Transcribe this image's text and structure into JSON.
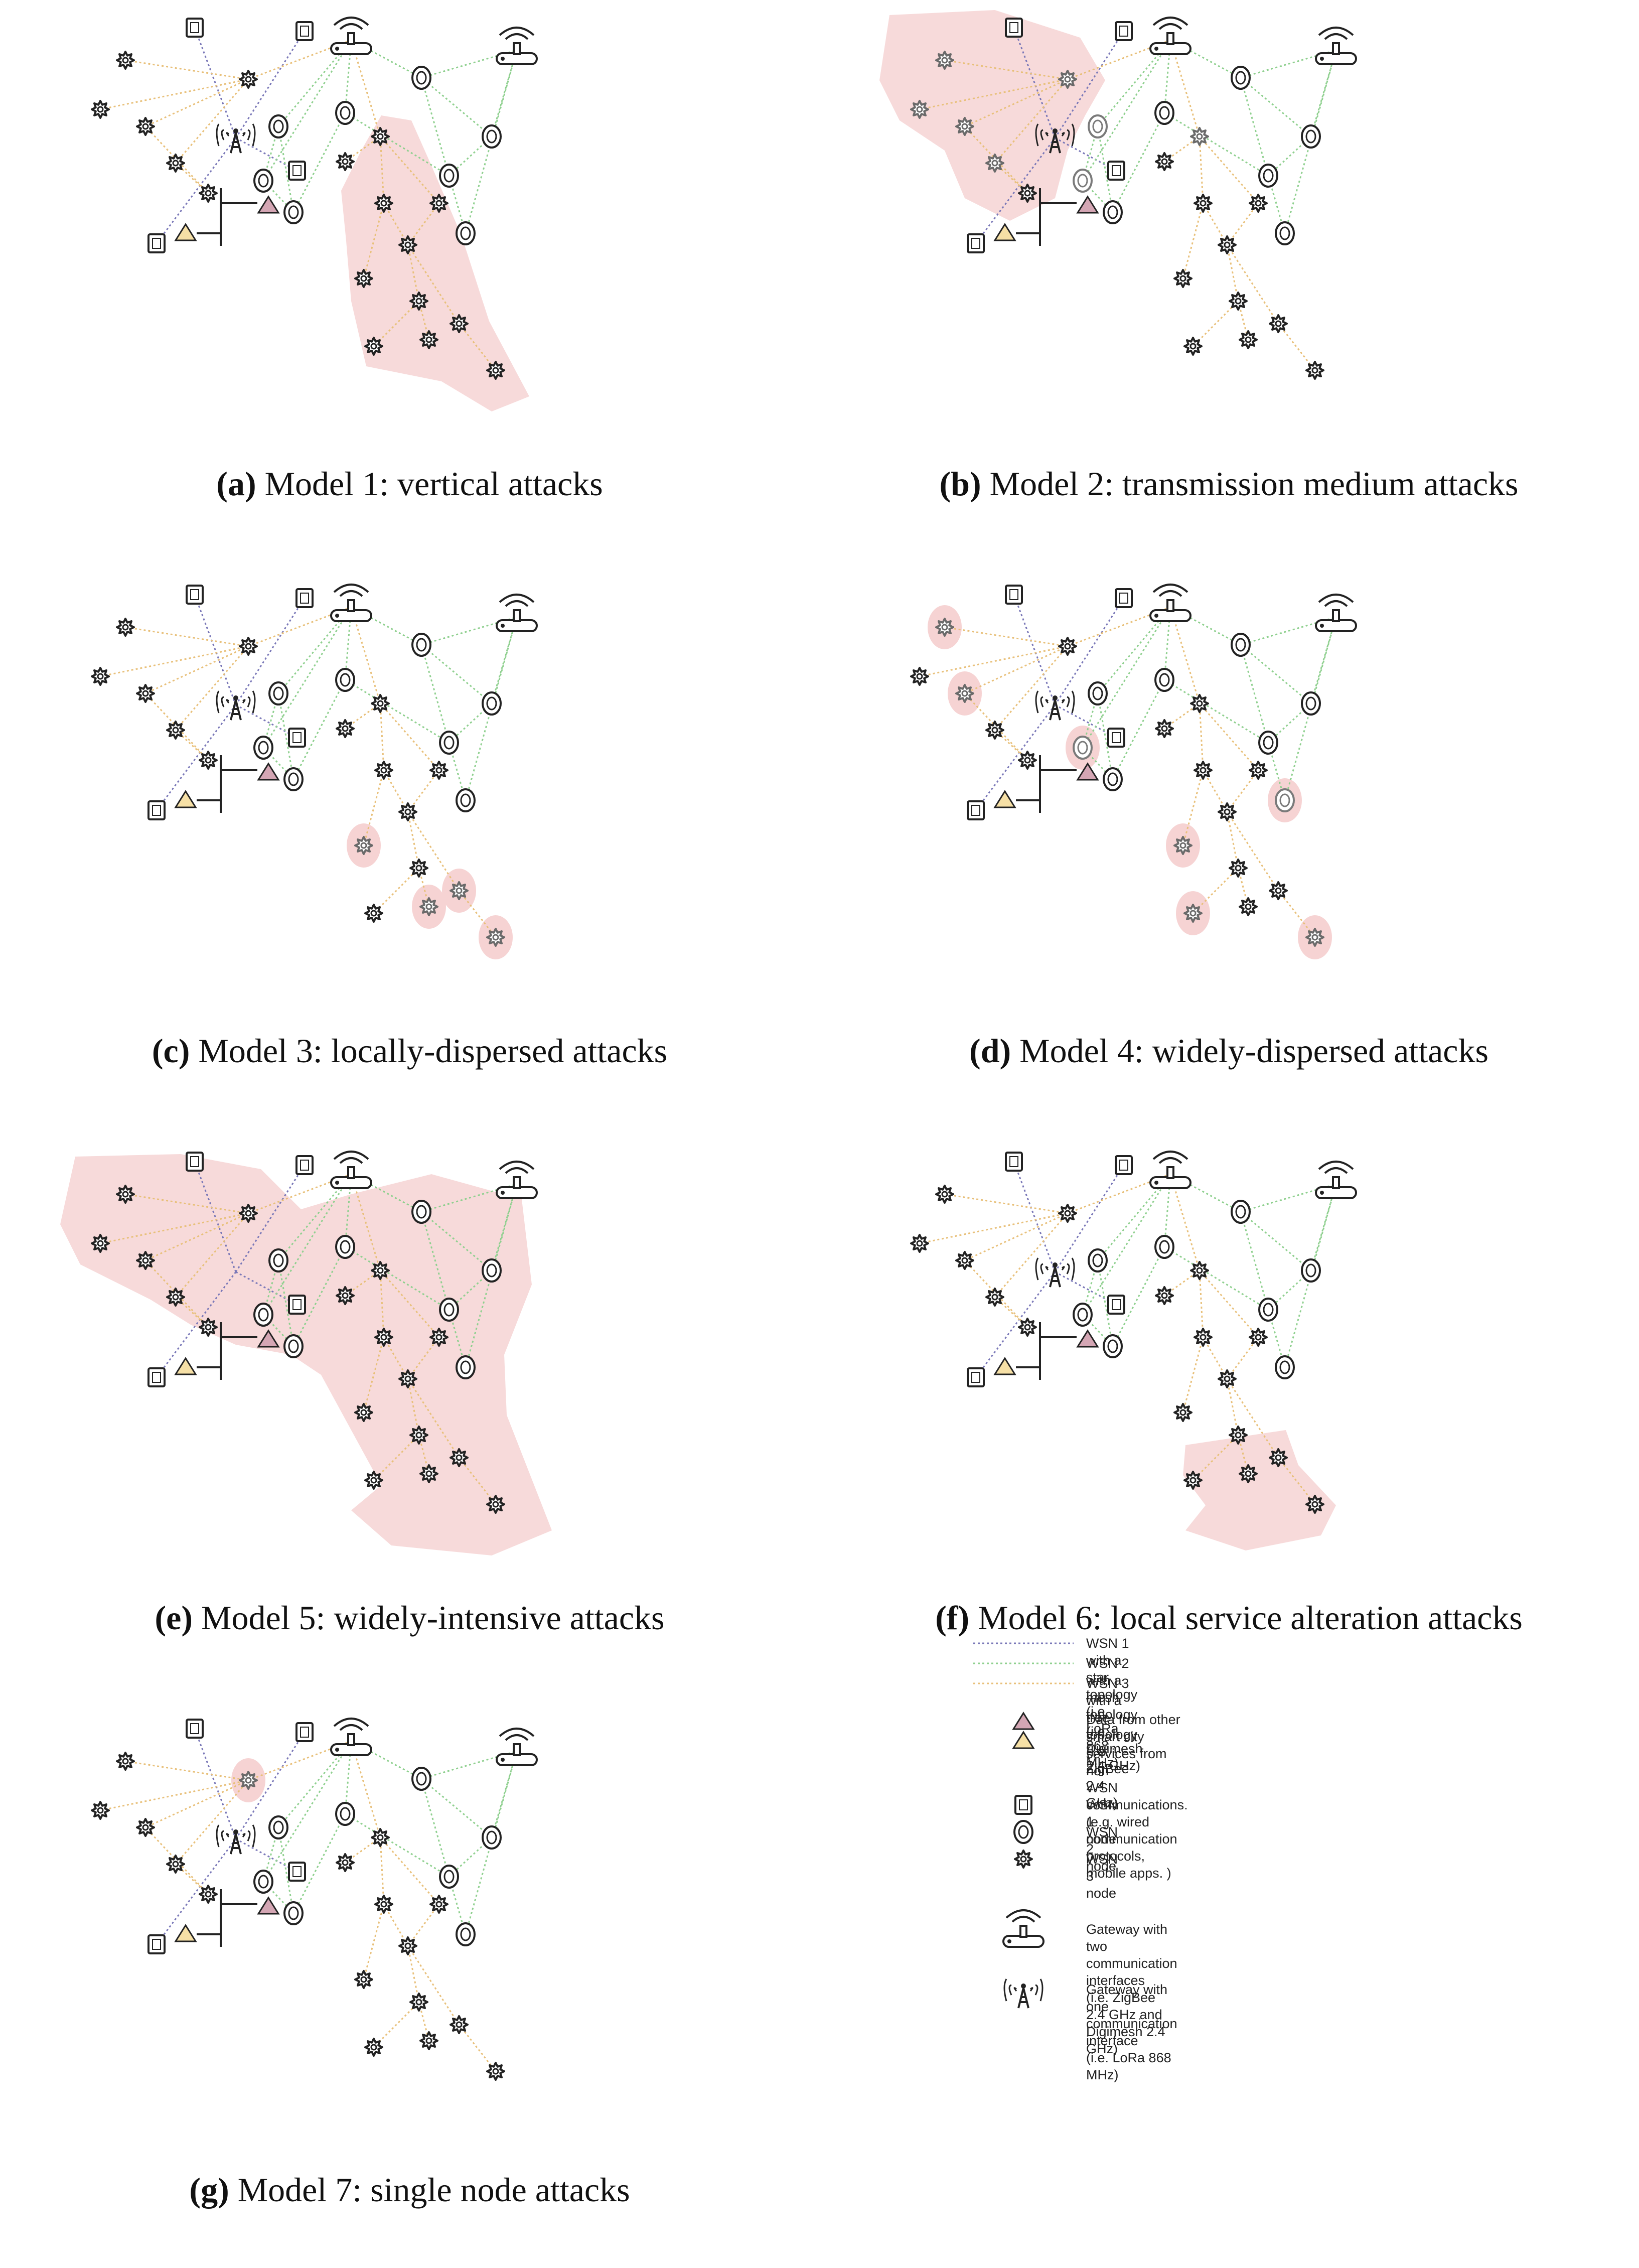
{
  "figure": {
    "panels": [
      {
        "id": "a",
        "label": "(a)",
        "caption": "Model 1: vertical attacks",
        "attack": "vertical"
      },
      {
        "id": "b",
        "label": "(b)",
        "caption": "Model 2: transmission medium attacks",
        "attack": "transmission"
      },
      {
        "id": "c",
        "label": "(c)",
        "caption": "Model 3: locally-dispersed attacks",
        "attack": "local-dispersed"
      },
      {
        "id": "d",
        "label": "(d)",
        "caption": "Model 4: widely-dispersed attacks",
        "attack": "wide-dispersed"
      },
      {
        "id": "e",
        "label": "(e)",
        "caption": "Model 5: widely-intensive attacks",
        "attack": "wide-intensive"
      },
      {
        "id": "f",
        "label": "(f)",
        "caption": "Model 6: local service alteration attacks",
        "attack": "local-service"
      },
      {
        "id": "g",
        "label": "(g)",
        "caption": "Model 7: single node attacks",
        "attack": "single-node"
      }
    ],
    "legend": {
      "wsn1_link": "WSN 1 with a star topology (i.e. LoRa 868 MHz)",
      "wsn2_link": "WSN 2 with a mesh topology (i.e. Digimesh 2.4 GHz)",
      "wsn3_link": "WSN 3 with a tree topology (i.e. ZigBee 2.4 GHz)",
      "other_data": "Data from other smart city services from non\nWSN communications. (e.g. wired\ncommunication protocols, mobile apps. )",
      "wsn1_node": "WSN 1 node",
      "wsn2_node": "WSN 2 node",
      "wsn3_node": "WSN 3 node",
      "gateway_two": "Gateway with two communication interfaces\n(i.e. ZigBee 2.4 GHz and Digimesh 2.4 GHz)",
      "gateway_one": "Gateway with one communication interface\n(i.e. LoRa 868 MHz)"
    },
    "colors": {
      "wsn1_link": "#7a78b8",
      "wsn2_link": "#8fd08f",
      "wsn3_link": "#e8c07a",
      "attack_area": "#f6d3d3",
      "triangle_pink": "#d4a6b4",
      "triangle_yellow": "#f6e0a6",
      "node_stroke": "#222222"
    },
    "icons": {
      "wsn1_node": "square-node-icon",
      "wsn2_node": "double-ellipse-node-icon",
      "wsn3_node": "star-node-icon",
      "gateway_two": "router-gateway-icon",
      "gateway_one": "antenna-tower-icon",
      "other_data": "triangle-icon"
    }
  }
}
